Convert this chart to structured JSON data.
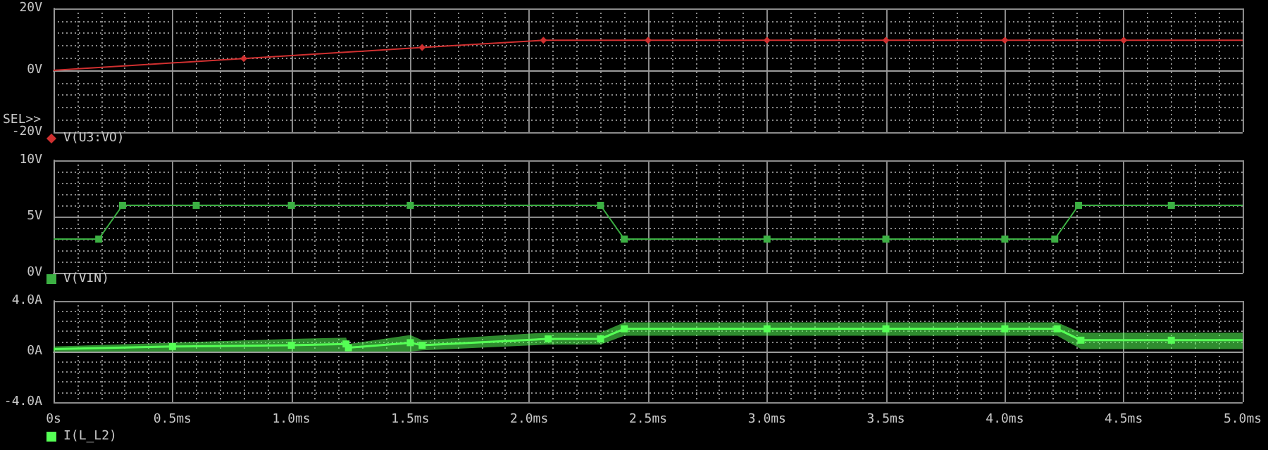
{
  "chart_data": [
    {
      "type": "line",
      "xlim": [
        0,
        5
      ],
      "ylim": [
        -20,
        20
      ],
      "tick_labels": "y",
      "grid": true,
      "legend": "bottom left",
      "annotations": [
        "SEL>>"
      ],
      "xticks": [
        0,
        0.5,
        1,
        1.5,
        2,
        2.5,
        3,
        3.5,
        4,
        4.5,
        5
      ],
      "yticks": [
        {
          "value": -20,
          "label": "-20V"
        },
        {
          "value": 0,
          "label": "0V"
        },
        {
          "value": 20,
          "label": "20V"
        }
      ],
      "series": [
        {
          "name": "V(U3:VO)",
          "color": "#d03030",
          "marker": "diamond",
          "x": [
            0,
            0.8,
            1.55,
            2.06,
            2.5,
            3,
            3.5,
            4,
            4.5,
            5
          ],
          "values": [
            0,
            3.8,
            7.4,
            9.7,
            9.7,
            9.7,
            9.7,
            9.7,
            9.7,
            9.7
          ]
        }
      ]
    },
    {
      "type": "line",
      "xlim": [
        0,
        5
      ],
      "ylim": [
        0,
        10
      ],
      "tick_labels": "y",
      "grid": true,
      "legend": "bottom left",
      "xticks": [
        0,
        0.5,
        1,
        1.5,
        2,
        2.5,
        3,
        3.5,
        4,
        4.5,
        5
      ],
      "yticks": [
        {
          "value": 0,
          "label": "0V"
        },
        {
          "value": 5,
          "label": "5V"
        },
        {
          "value": 10,
          "label": "10V"
        }
      ],
      "series": [
        {
          "name": "V(VIN)",
          "color": "#3cb043",
          "marker": "square",
          "x": [
            0,
            0.19,
            0.29,
            0.6,
            1.0,
            1.5,
            2.3,
            2.4,
            3,
            3.5,
            4,
            4.21,
            4.31,
            4.7,
            5
          ],
          "values": [
            3,
            3,
            6,
            6,
            6,
            6,
            6,
            3,
            3,
            3,
            3,
            3,
            6,
            6,
            6
          ]
        }
      ]
    },
    {
      "type": "line",
      "xlim": [
        0,
        5
      ],
      "ylim": [
        -4,
        4
      ],
      "grid": true,
      "legend": "bottom left",
      "xticks": [
        {
          "value": 0,
          "label": "0s"
        },
        {
          "value": 0.5,
          "label": "0.5ms"
        },
        {
          "value": 1,
          "label": "1.0ms"
        },
        {
          "value": 1.5,
          "label": "1.5ms"
        },
        {
          "value": 2,
          "label": "2.0ms"
        },
        {
          "value": 2.5,
          "label": "2.5ms"
        },
        {
          "value": 3,
          "label": "3.0ms"
        },
        {
          "value": 3.5,
          "label": "3.5ms"
        },
        {
          "value": 4,
          "label": "4.0ms"
        },
        {
          "value": 4.5,
          "label": "4.5ms"
        },
        {
          "value": 5,
          "label": "5.0ms"
        }
      ],
      "yticks": [
        {
          "value": -4,
          "label": "-4.0A"
        },
        {
          "value": 0,
          "label": "0A"
        },
        {
          "value": 4,
          "label": "4.0A"
        }
      ],
      "series": [
        {
          "name": "I(L_L2)",
          "color": "#55ff55",
          "marker": "square",
          "x": [
            0,
            0.5,
            1.0,
            1.23,
            1.24,
            1.5,
            1.55,
            2.08,
            2.3,
            2.4,
            3.0,
            3.5,
            4.0,
            4.22,
            4.32,
            4.7,
            5
          ],
          "values": [
            0.2,
            0.4,
            0.5,
            0.6,
            0.3,
            0.7,
            0.5,
            1.0,
            1.0,
            1.8,
            1.8,
            1.8,
            1.8,
            1.8,
            0.9,
            0.9,
            0.9
          ],
          "lower": [
            0,
            0,
            0,
            0,
            0,
            0,
            0.1,
            0.55,
            0.55,
            1.25,
            1.25,
            1.25,
            1.25,
            1.25,
            0.2,
            0.2,
            0.2
          ],
          "upper": [
            0.4,
            0.7,
            1.0,
            1.1,
            0.6,
            1.3,
            0.9,
            1.5,
            1.5,
            2.3,
            2.3,
            2.3,
            2.3,
            2.3,
            1.5,
            1.5,
            1.5
          ]
        }
      ]
    }
  ]
}
